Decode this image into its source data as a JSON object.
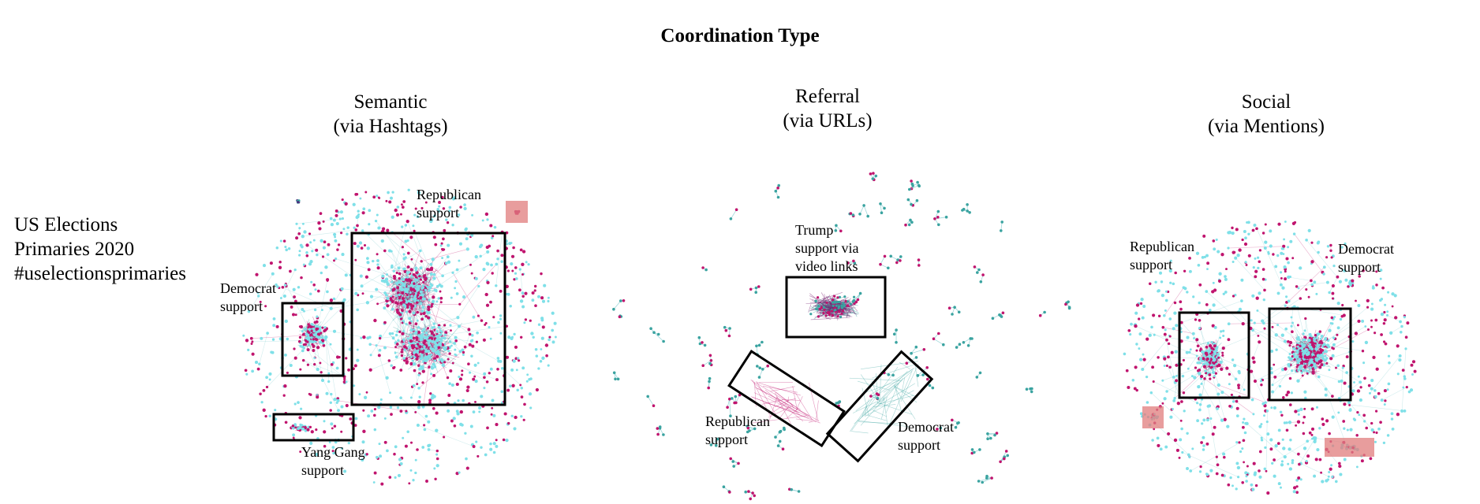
{
  "figure": {
    "title": "Coordination Type",
    "row_label": [
      "US Elections",
      "Primaries 2020",
      "#uselectionsprimaries"
    ],
    "colors": {
      "node_cyan": "#7fe0e8",
      "node_magenta": "#c0146e",
      "node_teal": "#3aa3a0",
      "edge": "#78c8cc",
      "highlight_box": "#e07c7c"
    },
    "panels": [
      {
        "id": "semantic",
        "title_lines": [
          "Semantic",
          "(via Hashtags)"
        ],
        "annotations": [
          {
            "id": "republican",
            "lines": [
              "Republican",
              "support"
            ]
          },
          {
            "id": "democrat",
            "lines": [
              "Democrat",
              "support"
            ]
          },
          {
            "id": "yang",
            "lines": [
              "Yang Gang",
              "support"
            ]
          }
        ]
      },
      {
        "id": "referral",
        "title_lines": [
          "Referral",
          "(via URLs)"
        ],
        "annotations": [
          {
            "id": "trump",
            "lines": [
              "Trump",
              "support via",
              "video links"
            ]
          },
          {
            "id": "republican",
            "lines": [
              "Republican",
              "support"
            ]
          },
          {
            "id": "democrat",
            "lines": [
              "Democrat",
              "support"
            ]
          }
        ]
      },
      {
        "id": "social",
        "title_lines": [
          "Social",
          "(via Mentions)"
        ],
        "annotations": [
          {
            "id": "republican",
            "lines": [
              "Republican",
              "support"
            ]
          },
          {
            "id": "democrat",
            "lines": [
              "Democrat",
              "support"
            ]
          }
        ]
      }
    ]
  }
}
